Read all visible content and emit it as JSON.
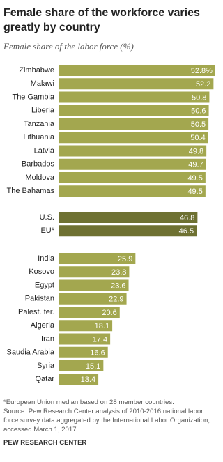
{
  "title": "Female share of the workforce varies greatly by country",
  "subtitle": "Female share of the labor force (%)",
  "chart_data": [
    {
      "type": "bar",
      "color": "#a3a74f",
      "categories": [
        "Zimbabwe",
        "Malawi",
        "The Gambia",
        "Liberia",
        "Tanzania",
        "Lithuania",
        "Latvia",
        "Barbados",
        "Moldova",
        "The Bahamas"
      ],
      "values": [
        52.8,
        52.2,
        50.8,
        50.6,
        50.5,
        50.4,
        49.8,
        49.7,
        49.5,
        49.5
      ],
      "value_labels": [
        "52.8%",
        "52.2",
        "50.8",
        "50.6",
        "50.5",
        "50.4",
        "49.8",
        "49.7",
        "49.5",
        "49.5"
      ]
    },
    {
      "type": "bar",
      "color": "#6e7132",
      "categories": [
        "U.S.",
        "EU*"
      ],
      "values": [
        46.8,
        46.5
      ]
    },
    {
      "type": "bar",
      "color": "#a3a74f",
      "categories": [
        "India",
        "Kosovo",
        "Egypt",
        "Pakistan",
        "Palest. ter.",
        "Algeria",
        "Iran",
        "Saudia Arabia",
        "Syria",
        "Qatar"
      ],
      "values": [
        25.9,
        23.8,
        23.6,
        22.9,
        20.6,
        18.1,
        17.4,
        16.6,
        15.1,
        13.4
      ]
    }
  ],
  "footnote": "*European Union median based on 28 member countries.",
  "source": "Source: Pew Research Center analysis of 2010-2016 national labor force survey data aggregated by the International Labor Organization, accessed March 1, 2017.",
  "brand": "PEW RESEARCH CENTER"
}
